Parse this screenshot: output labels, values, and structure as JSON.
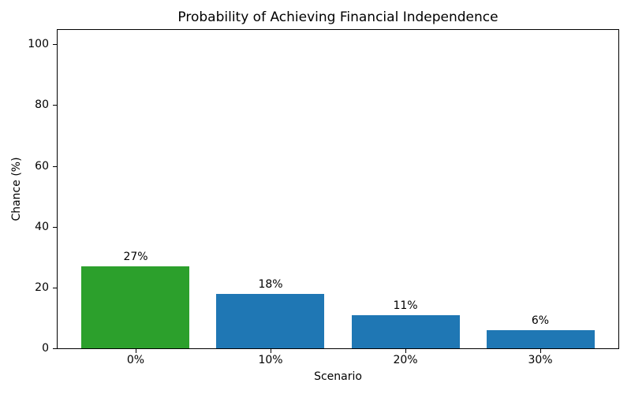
{
  "chart_data": {
    "type": "bar",
    "title": "Probability of Achieving Financial Independence",
    "xlabel": "Scenario",
    "ylabel": "Chance (%)",
    "categories": [
      "0%",
      "10%",
      "20%",
      "30%"
    ],
    "values": [
      27,
      18,
      11,
      6
    ],
    "bar_labels": [
      "27%",
      "18%",
      "11%",
      "6%"
    ],
    "bar_colors": [
      "#2ca02c",
      "#1f77b4",
      "#1f77b4",
      "#1f77b4"
    ],
    "yticks": [
      0,
      20,
      40,
      60,
      80,
      100
    ],
    "ylim": [
      0,
      105
    ],
    "grid": false,
    "legend": "none",
    "background": "#ffffff",
    "text_color": "#000000"
  }
}
